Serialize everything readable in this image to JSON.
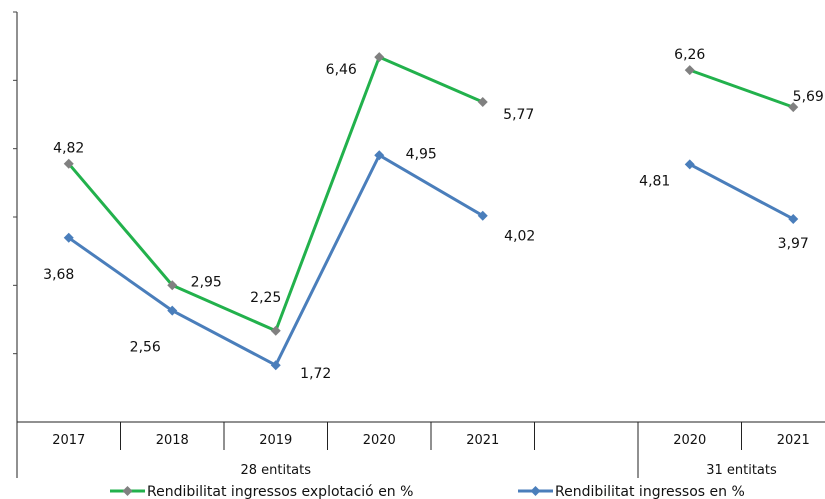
{
  "chart_data": {
    "type": "line",
    "groups": [
      {
        "label": "28 entitats",
        "categories": [
          "2017",
          "2018",
          "2019",
          "2020",
          "2021"
        ],
        "series": [
          {
            "name": "Rendibilitat ingressos explotació  en %",
            "color": "#22b14c",
            "marker_color": "#808080",
            "values": [
              4.82,
              2.95,
              2.25,
              6.46,
              5.77
            ],
            "labels": [
              "4,82",
              "2,95",
              "2,25",
              "6,46",
              "5,77"
            ]
          },
          {
            "name": "Rendibilitat ingressos  en %",
            "color": "#4a7ebb",
            "marker_color": "#4a7ebb",
            "values": [
              3.68,
              2.56,
              1.72,
              4.95,
              4.02
            ],
            "labels": [
              "3,68",
              "2,56",
              "1,72",
              "4,95",
              "4,02"
            ]
          }
        ]
      },
      {
        "label": "31  entitats",
        "categories": [
          "2020",
          "2021"
        ],
        "series": [
          {
            "name": "Rendibilitat ingressos explotació  en %",
            "color": "#22b14c",
            "marker_color": "#808080",
            "values": [
              6.26,
              5.69
            ],
            "labels": [
              "6,26",
              "5,69"
            ]
          },
          {
            "name": "Rendibilitat ingressos  en %",
            "color": "#4a7ebb",
            "marker_color": "#4a7ebb",
            "values": [
              4.81,
              3.97
            ],
            "labels": [
              "4,81",
              "3,97"
            ]
          }
        ]
      }
    ],
    "ylim": [
      1.0,
      7.0
    ],
    "title": "",
    "xlabel": "",
    "ylabel": "",
    "legend": {
      "placement": "bottom",
      "entries": [
        {
          "label": "Rendibilitat ingressos explotació  en %",
          "color": "#22b14c",
          "marker_color": "#808080"
        },
        {
          "label": "Rendibilitat ingressos  en %",
          "color": "#4a7ebb",
          "marker_color": "#4a7ebb"
        }
      ]
    },
    "grid": false
  }
}
